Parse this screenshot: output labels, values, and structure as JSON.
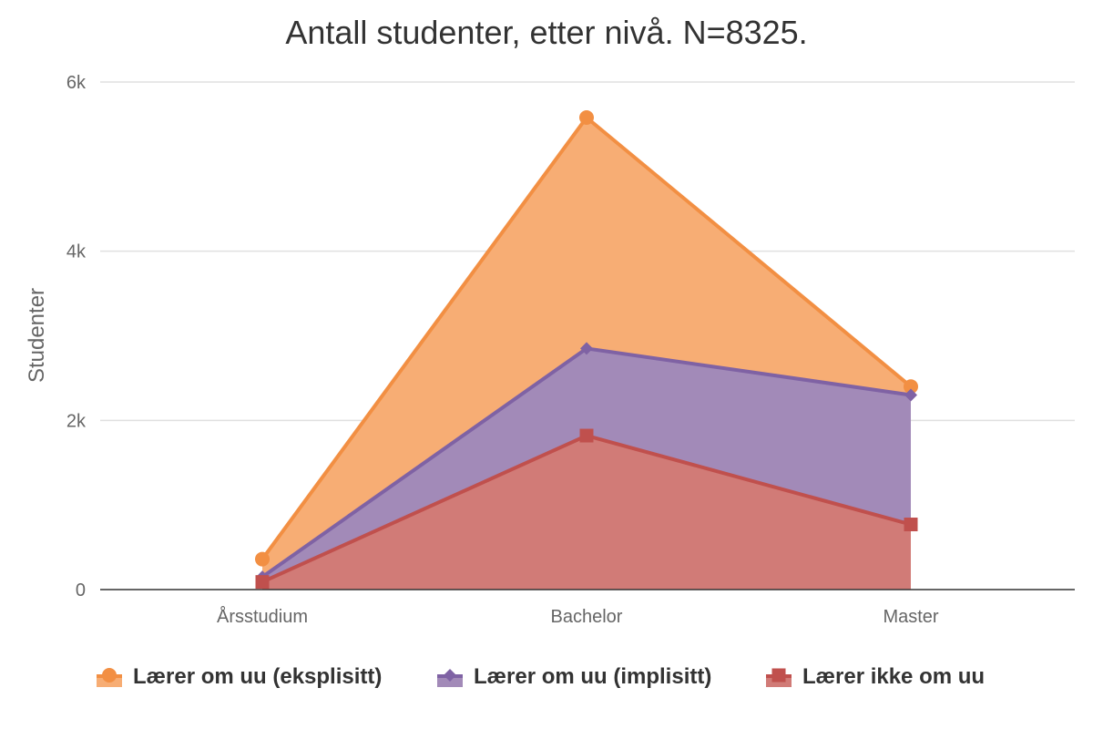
{
  "chart_data": {
    "type": "area",
    "title": "Antall studenter, etter nivå. N=8325.",
    "ylabel": "Studenter",
    "xlabel": "",
    "categories": [
      "Årsstudium",
      "Bachelor",
      "Master"
    ],
    "ylim": [
      0,
      6000
    ],
    "yticks": [
      {
        "value": 0,
        "label": "0"
      },
      {
        "value": 2000,
        "label": "2k"
      },
      {
        "value": 4000,
        "label": "4k"
      },
      {
        "value": 6000,
        "label": "6k"
      }
    ],
    "grid": true,
    "legend_position": "bottom",
    "series": [
      {
        "name": "Lærer om uu (eksplisitt)",
        "values": [
          360,
          5580,
          2400
        ],
        "color": "#f28f43",
        "fill": "#f7ad74",
        "marker": "circle"
      },
      {
        "name": "Lærer om uu (implisitt)",
        "values": [
          150,
          2850,
          2300
        ],
        "color": "#7f62a4",
        "fill": "#a28ab8",
        "marker": "diamond"
      },
      {
        "name": "Lærer ikke om uu",
        "values": [
          90,
          1820,
          770
        ],
        "color": "#c0504d",
        "fill": "#d17b77",
        "marker": "square"
      }
    ]
  }
}
